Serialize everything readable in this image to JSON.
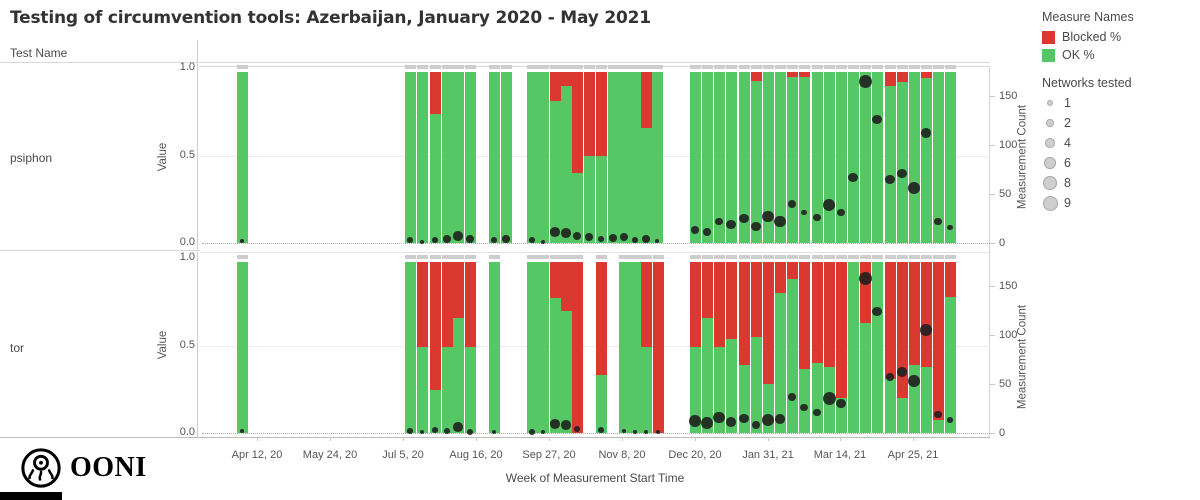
{
  "title": "Testing of circumvention tools: Azerbaijan, January 2020 - May 2021",
  "header": {
    "test_name_label": "Test Name"
  },
  "colors": {
    "blocked": "#DB382F",
    "ok": "#55C765",
    "cap": "#CDCDCD",
    "dot": "#1E1E1E"
  },
  "legend": {
    "measures_title": "Measure Names",
    "measures": [
      {
        "label": "Blocked %",
        "color": "#DB382F"
      },
      {
        "label": "OK %",
        "color": "#55C765"
      }
    ],
    "networks_title": "Networks tested",
    "networks": [
      {
        "label": "1",
        "diameter": 4
      },
      {
        "label": "2",
        "diameter": 5.5
      },
      {
        "label": "4",
        "diameter": 7.5
      },
      {
        "label": "6",
        "diameter": 9.5
      },
      {
        "label": "8",
        "diameter": 11.5
      },
      {
        "label": "9",
        "diameter": 13
      }
    ]
  },
  "chart_data": {
    "type": "bar",
    "subtype": "stacked-percent-with-dot-overlay",
    "x_axis_label": "Week of Measurement Start Time",
    "x_ticks": [
      {
        "label": "Apr 12, 20",
        "x": 57
      },
      {
        "label": "May 24, 20",
        "x": 130
      },
      {
        "label": "Jul 5, 20",
        "x": 203
      },
      {
        "label": "Aug 16, 20",
        "x": 276
      },
      {
        "label": "Sep 27, 20",
        "x": 349
      },
      {
        "label": "Nov 8, 20",
        "x": 422
      },
      {
        "label": "Dec 20, 20",
        "x": 495
      },
      {
        "label": "Jan 31, 21",
        "x": 568
      },
      {
        "label": "Mar 14, 21",
        "x": 640
      },
      {
        "label": "Apr 25, 21",
        "x": 713
      }
    ],
    "value_axis": {
      "label": "Value",
      "ticks": [
        "1.0",
        "0.5",
        "0.0"
      ],
      "range": [
        0,
        1
      ]
    },
    "count_axis": {
      "label": "Measurement Count",
      "ticks": [
        "150",
        "100",
        "50",
        "0"
      ],
      "range": [
        0,
        170
      ]
    },
    "panels": [
      {
        "test_name": "psiphon",
        "bars": [
          {
            "week": "Apr 5, 20",
            "x": 42,
            "blocked": 0,
            "ok": 0.98,
            "count": 2,
            "networks": 1
          },
          {
            "week": "Jul 5, 20",
            "x": 210,
            "blocked": 0,
            "ok": 0.98,
            "count": 3,
            "networks": 2
          },
          {
            "week": "Jul 12, 20",
            "x": 222,
            "blocked": 0,
            "ok": 0.98,
            "count": 1,
            "networks": 1
          },
          {
            "week": "Jul 19, 20",
            "x": 235,
            "blocked": 0.24,
            "ok": 0.74,
            "count": 3,
            "networks": 2
          },
          {
            "week": "Jul 26, 20",
            "x": 247,
            "blocked": 0,
            "ok": 0.98,
            "count": 4,
            "networks": 4
          },
          {
            "week": "Aug 2, 20",
            "x": 258,
            "blocked": 0,
            "ok": 0.98,
            "count": 7,
            "networks": 6
          },
          {
            "week": "Aug 9, 20",
            "x": 270,
            "blocked": 0,
            "ok": 0.98,
            "count": 4,
            "networks": 4
          },
          {
            "week": "Aug 23, 20",
            "x": 294,
            "blocked": 0,
            "ok": 0.98,
            "count": 3,
            "networks": 2
          },
          {
            "week": "Aug 30, 20",
            "x": 306,
            "blocked": 0,
            "ok": 0.98,
            "count": 4,
            "networks": 4
          },
          {
            "week": "Sep 20, 20",
            "x": 332,
            "blocked": 0,
            "ok": 0.98,
            "count": 3,
            "networks": 2
          },
          {
            "week": "Sep 27, 20",
            "x": 343,
            "blocked": 0,
            "ok": 0.98,
            "count": 1,
            "networks": 1
          },
          {
            "week": "Oct 4, 20",
            "x": 355,
            "blocked": 0.17,
            "ok": 0.81,
            "count": 11,
            "networks": 6
          },
          {
            "week": "Oct 11, 20",
            "x": 366,
            "blocked": 0.085,
            "ok": 0.895,
            "count": 10,
            "networks": 6
          },
          {
            "week": "Oct 18, 20",
            "x": 377,
            "blocked": 0.58,
            "ok": 0.4,
            "count": 7,
            "networks": 4
          },
          {
            "week": "Oct 25, 20",
            "x": 389,
            "blocked": 0.48,
            "ok": 0.5,
            "count": 6,
            "networks": 4
          },
          {
            "week": "Nov 1, 20",
            "x": 401,
            "blocked": 0.48,
            "ok": 0.5,
            "count": 4,
            "networks": 2
          },
          {
            "week": "Nov 8, 20",
            "x": 413,
            "blocked": 0,
            "ok": 0.98,
            "count": 5,
            "networks": 4
          },
          {
            "week": "Nov 15, 20",
            "x": 424,
            "blocked": 0,
            "ok": 0.98,
            "count": 6,
            "networks": 4
          },
          {
            "week": "Nov 22, 20",
            "x": 435,
            "blocked": 0,
            "ok": 0.98,
            "count": 3,
            "networks": 2
          },
          {
            "week": "Nov 29, 20",
            "x": 446,
            "blocked": 0.32,
            "ok": 0.66,
            "count": 4,
            "networks": 4
          },
          {
            "week": "Dec 6, 20",
            "x": 457,
            "blocked": 0,
            "ok": 0.98,
            "count": 2,
            "networks": 1
          },
          {
            "week": "Dec 20, 20",
            "x": 495,
            "blocked": 0,
            "ok": 0.98,
            "count": 13,
            "networks": 4
          },
          {
            "week": "Dec 27, 20",
            "x": 507,
            "blocked": 0,
            "ok": 0.98,
            "count": 11,
            "networks": 4
          },
          {
            "week": "Jan 3, 21",
            "x": 519,
            "blocked": 0,
            "ok": 0.98,
            "count": 22,
            "networks": 4
          },
          {
            "week": "Jan 10, 21",
            "x": 531,
            "blocked": 0,
            "ok": 0.98,
            "count": 19,
            "networks": 6
          },
          {
            "week": "Jan 17, 21",
            "x": 544,
            "blocked": 0,
            "ok": 0.98,
            "count": 25,
            "networks": 6
          },
          {
            "week": "Jan 24, 21",
            "x": 556,
            "blocked": 0.055,
            "ok": 0.925,
            "count": 17,
            "networks": 6
          },
          {
            "week": "Jan 31, 21",
            "x": 568,
            "blocked": 0,
            "ok": 0.98,
            "count": 27,
            "networks": 8
          },
          {
            "week": "Feb 7, 21",
            "x": 580,
            "blocked": 0,
            "ok": 0.98,
            "count": 22,
            "networks": 8
          },
          {
            "week": "Feb 14, 21",
            "x": 592,
            "blocked": 0.03,
            "ok": 0.95,
            "count": 40,
            "networks": 4
          },
          {
            "week": "Feb 21, 21",
            "x": 604,
            "blocked": 0.03,
            "ok": 0.95,
            "count": 31,
            "networks": 2
          },
          {
            "week": "Feb 28, 21",
            "x": 617,
            "blocked": 0,
            "ok": 0.98,
            "count": 26,
            "networks": 4
          },
          {
            "week": "Mar 7, 21",
            "x": 629,
            "blocked": 0,
            "ok": 0.98,
            "count": 39,
            "networks": 8
          },
          {
            "week": "Mar 14, 21",
            "x": 641,
            "blocked": 0,
            "ok": 0.98,
            "count": 31,
            "networks": 4
          },
          {
            "week": "Mar 21, 21",
            "x": 653,
            "blocked": 0,
            "ok": 0.98,
            "count": 67,
            "networks": 6
          },
          {
            "week": "Mar 28, 21",
            "x": 665,
            "blocked": 0,
            "ok": 0.98,
            "count": 165,
            "networks": 9
          },
          {
            "week": "Apr 4, 21",
            "x": 677,
            "blocked": 0,
            "ok": 0.98,
            "count": 126,
            "networks": 6
          },
          {
            "week": "Apr 11, 21",
            "x": 690,
            "blocked": 0.085,
            "ok": 0.895,
            "count": 65,
            "networks": 6
          },
          {
            "week": "Apr 18, 21",
            "x": 702,
            "blocked": 0.06,
            "ok": 0.92,
            "count": 71,
            "networks": 6
          },
          {
            "week": "Apr 25, 21",
            "x": 714,
            "blocked": 0,
            "ok": 0.98,
            "count": 56,
            "networks": 8
          },
          {
            "week": "May 2, 21",
            "x": 726,
            "blocked": 0.035,
            "ok": 0.945,
            "count": 112,
            "networks": 6
          },
          {
            "week": "May 9, 21",
            "x": 738,
            "blocked": 0,
            "ok": 0.98,
            "count": 22,
            "networks": 4
          },
          {
            "week": "May 16, 21",
            "x": 750,
            "blocked": 0,
            "ok": 0.98,
            "count": 16,
            "networks": 2
          }
        ]
      },
      {
        "test_name": "tor",
        "bars": [
          {
            "week": "Apr 5, 20",
            "x": 42,
            "blocked": 0,
            "ok": 0.98,
            "count": 2,
            "networks": 1
          },
          {
            "week": "Jul 5, 20",
            "x": 210,
            "blocked": 0,
            "ok": 0.98,
            "count": 2,
            "networks": 2
          },
          {
            "week": "Jul 12, 20",
            "x": 222,
            "blocked": 0.49,
            "ok": 0.49,
            "count": 1,
            "networks": 1
          },
          {
            "week": "Jul 19, 20",
            "x": 235,
            "blocked": 0.735,
            "ok": 0.245,
            "count": 3,
            "networks": 2
          },
          {
            "week": "Jul 26, 20",
            "x": 247,
            "blocked": 0.49,
            "ok": 0.49,
            "count": 2,
            "networks": 2
          },
          {
            "week": "Aug 2, 20",
            "x": 258,
            "blocked": 0.32,
            "ok": 0.66,
            "count": 6,
            "networks": 6
          },
          {
            "week": "Aug 9, 20",
            "x": 270,
            "blocked": 0.49,
            "ok": 0.49,
            "count": 1,
            "networks": 2
          },
          {
            "week": "Aug 23, 20",
            "x": 294,
            "blocked": 0,
            "ok": 0.98,
            "count": 1,
            "networks": 1
          },
          {
            "week": "Sep 20, 20",
            "x": 332,
            "blocked": 0,
            "ok": 0.98,
            "count": 1,
            "networks": 2
          },
          {
            "week": "Sep 27, 20",
            "x": 343,
            "blocked": 0,
            "ok": 0.98,
            "count": 1,
            "networks": 1
          },
          {
            "week": "Oct 4, 20",
            "x": 355,
            "blocked": 0.21,
            "ok": 0.77,
            "count": 9,
            "networks": 6
          },
          {
            "week": "Oct 11, 20",
            "x": 366,
            "blocked": 0.28,
            "ok": 0.7,
            "count": 8,
            "networks": 6
          },
          {
            "week": "Oct 18, 20",
            "x": 377,
            "blocked": 0.98,
            "ok": 0,
            "count": 4,
            "networks": 2
          },
          {
            "week": "Nov 1, 20",
            "x": 401,
            "blocked": 0.65,
            "ok": 0.33,
            "count": 3,
            "networks": 2
          },
          {
            "week": "Nov 15, 20",
            "x": 424,
            "blocked": 0,
            "ok": 0.98,
            "count": 2,
            "networks": 1
          },
          {
            "week": "Nov 22, 20",
            "x": 435,
            "blocked": 0,
            "ok": 0.98,
            "count": 1,
            "networks": 1
          },
          {
            "week": "Nov 29, 20",
            "x": 446,
            "blocked": 0.49,
            "ok": 0.49,
            "count": 1,
            "networks": 1
          },
          {
            "week": "Dec 6, 20",
            "x": 458,
            "blocked": 0.98,
            "ok": 0,
            "count": 1,
            "networks": 1
          },
          {
            "week": "Dec 20, 20",
            "x": 495,
            "blocked": 0.49,
            "ok": 0.49,
            "count": 12,
            "networks": 8
          },
          {
            "week": "Dec 27, 20",
            "x": 507,
            "blocked": 0.32,
            "ok": 0.66,
            "count": 10,
            "networks": 8
          },
          {
            "week": "Jan 3, 21",
            "x": 519,
            "blocked": 0.49,
            "ok": 0.49,
            "count": 16,
            "networks": 8
          },
          {
            "week": "Jan 10, 21",
            "x": 531,
            "blocked": 0.44,
            "ok": 0.54,
            "count": 11,
            "networks": 6
          },
          {
            "week": "Jan 17, 21",
            "x": 544,
            "blocked": 0.59,
            "ok": 0.39,
            "count": 15,
            "networks": 6
          },
          {
            "week": "Jan 24, 21",
            "x": 556,
            "blocked": 0.43,
            "ok": 0.55,
            "count": 8,
            "networks": 4
          },
          {
            "week": "Jan 31, 21",
            "x": 568,
            "blocked": 0.7,
            "ok": 0.28,
            "count": 13,
            "networks": 8
          },
          {
            "week": "Feb 7, 21",
            "x": 580,
            "blocked": 0.18,
            "ok": 0.8,
            "count": 14,
            "networks": 6
          },
          {
            "week": "Feb 14, 21",
            "x": 592,
            "blocked": 0.1,
            "ok": 0.88,
            "count": 37,
            "networks": 4
          },
          {
            "week": "Feb 21, 21",
            "x": 604,
            "blocked": 0.615,
            "ok": 0.365,
            "count": 26,
            "networks": 4
          },
          {
            "week": "Feb 28, 21",
            "x": 617,
            "blocked": 0.58,
            "ok": 0.4,
            "count": 21,
            "networks": 4
          },
          {
            "week": "Mar 7, 21",
            "x": 629,
            "blocked": 0.6,
            "ok": 0.38,
            "count": 35,
            "networks": 9
          },
          {
            "week": "Mar 14, 21",
            "x": 641,
            "blocked": 0.78,
            "ok": 0.2,
            "count": 30,
            "networks": 6
          },
          {
            "week": "Mar 21, 21",
            "x": 653,
            "blocked": 0,
            "ok": 0.98,
            "count": null,
            "networks": null
          },
          {
            "week": "Mar 28, 21",
            "x": 665,
            "blocked": 0.35,
            "ok": 0.63,
            "count": 158,
            "networks": 9
          },
          {
            "week": "Apr 4, 21",
            "x": 677,
            "blocked": 0,
            "ok": 0.98,
            "count": 124,
            "networks": 6
          },
          {
            "week": "Apr 11, 21",
            "x": 690,
            "blocked": 0.67,
            "ok": 0.31,
            "count": 57,
            "networks": 4
          },
          {
            "week": "Apr 18, 21",
            "x": 702,
            "blocked": 0.78,
            "ok": 0.2,
            "count": 62,
            "networks": 6
          },
          {
            "week": "Apr 25, 21",
            "x": 714,
            "blocked": 0.59,
            "ok": 0.39,
            "count": 53,
            "networks": 8
          },
          {
            "week": "May 2, 21",
            "x": 726,
            "blocked": 0.6,
            "ok": 0.38,
            "count": 105,
            "networks": 8
          },
          {
            "week": "May 9, 21",
            "x": 738,
            "blocked": 0.905,
            "ok": 0.075,
            "count": 19,
            "networks": 4
          },
          {
            "week": "May 16, 21",
            "x": 750,
            "blocked": 0.2,
            "ok": 0.78,
            "count": 13,
            "networks": 2
          }
        ]
      }
    ]
  },
  "footer": {
    "logo_text": "OONI"
  }
}
